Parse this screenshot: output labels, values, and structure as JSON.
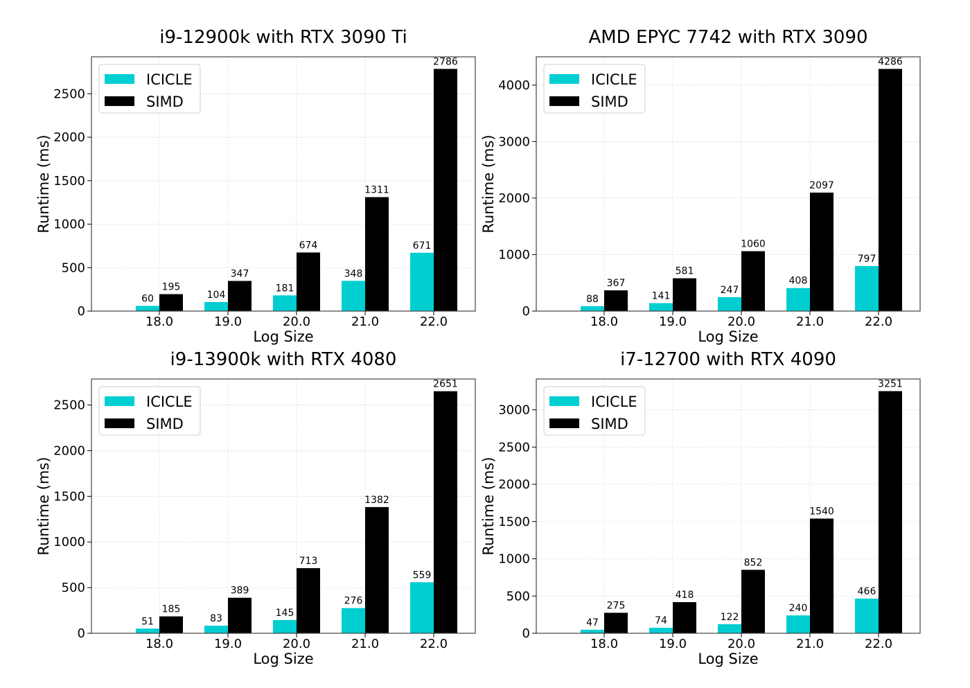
{
  "colors": {
    "icicle": "#00CED1",
    "simd": "#000000",
    "grid": "#d9d9d9",
    "frame": "#444444"
  },
  "chart_data": [
    {
      "type": "bar",
      "title": "i9-12900k with RTX 3090 Ti",
      "xlabel": "Log Size",
      "ylabel": "Runtime (ms)",
      "categories": [
        "18.0",
        "19.0",
        "20.0",
        "21.0",
        "22.0"
      ],
      "series": [
        {
          "name": "ICICLE",
          "values": [
            60,
            104,
            181,
            348,
            671
          ]
        },
        {
          "name": "SIMD",
          "values": [
            195,
            347,
            674,
            1311,
            2786
          ]
        }
      ],
      "ylim": [
        0,
        2925
      ],
      "yticks": [
        0,
        500,
        1000,
        1500,
        2000,
        2500
      ],
      "grid": true,
      "legend": "top-left"
    },
    {
      "type": "bar",
      "title": "AMD EPYC 7742 with RTX 3090",
      "xlabel": "Log Size",
      "ylabel": "Runtime (ms)",
      "categories": [
        "18.0",
        "19.0",
        "20.0",
        "21.0",
        "22.0"
      ],
      "series": [
        {
          "name": "ICICLE",
          "values": [
            88,
            141,
            247,
            408,
            797
          ]
        },
        {
          "name": "SIMD",
          "values": [
            367,
            581,
            1060,
            2097,
            4286
          ]
        }
      ],
      "ylim": [
        0,
        4500
      ],
      "yticks": [
        0,
        1000,
        2000,
        3000,
        4000
      ],
      "grid": true,
      "legend": "top-left"
    },
    {
      "type": "bar",
      "title": "i9-13900k with RTX 4080",
      "xlabel": "Log Size",
      "ylabel": "Runtime (ms)",
      "categories": [
        "18.0",
        "19.0",
        "20.0",
        "21.0",
        "22.0"
      ],
      "series": [
        {
          "name": "ICICLE",
          "values": [
            51,
            83,
            145,
            276,
            559
          ]
        },
        {
          "name": "SIMD",
          "values": [
            185,
            389,
            713,
            1382,
            2651
          ]
        }
      ],
      "ylim": [
        0,
        2785
      ],
      "yticks": [
        0,
        500,
        1000,
        1500,
        2000,
        2500
      ],
      "grid": true,
      "legend": "top-left"
    },
    {
      "type": "bar",
      "title": "i7-12700 with RTX 4090",
      "xlabel": "Log Size",
      "ylabel": "Runtime (ms)",
      "categories": [
        "18.0",
        "19.0",
        "20.0",
        "21.0",
        "22.0"
      ],
      "series": [
        {
          "name": "ICICLE",
          "values": [
            47,
            74,
            122,
            240,
            466
          ]
        },
        {
          "name": "SIMD",
          "values": [
            275,
            418,
            852,
            1540,
            3251
          ]
        }
      ],
      "ylim": [
        0,
        3414
      ],
      "yticks": [
        0,
        500,
        1000,
        1500,
        2000,
        2500,
        3000
      ],
      "grid": true,
      "legend": "top-left"
    }
  ]
}
